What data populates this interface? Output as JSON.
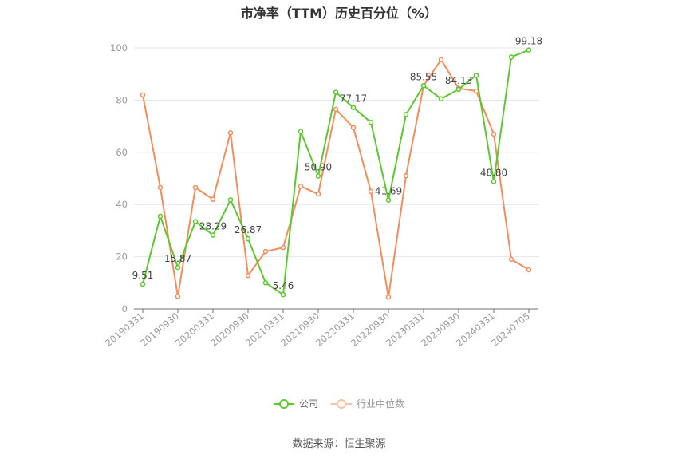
{
  "title": "市净率（TTM）历史百分位（%）",
  "source": "数据来源：恒生聚源",
  "legend": [
    {
      "label": "公司",
      "color": "#5cc72f"
    },
    {
      "label": "行业中位数",
      "color": "#f58c5b"
    }
  ],
  "chart_data": {
    "type": "line",
    "title": "市净率（TTM）历史百分位（%）",
    "xlabel": "",
    "ylabel": "",
    "ylim": [
      0,
      100
    ],
    "yticks": [
      0,
      20,
      40,
      60,
      80,
      100
    ],
    "grid": true,
    "legend_position": "bottom",
    "x": [
      "20190331",
      "20190630",
      "20190930",
      "20191231",
      "20200331",
      "20200630",
      "20200930",
      "20201231",
      "20210331",
      "20210630",
      "20210930",
      "20211231",
      "20220331",
      "20220630",
      "20220930",
      "20221231",
      "20230331",
      "20230630",
      "20230930",
      "20231231",
      "20240331",
      "20240630",
      "20240705"
    ],
    "xtick_labels": [
      "20190331",
      "20190930",
      "20200331",
      "20200930",
      "20210331",
      "20210930",
      "20220331",
      "20220930",
      "20230331",
      "20230930",
      "20240331",
      "20240705"
    ],
    "series": [
      {
        "name": "公司",
        "color": "#5cc72f",
        "values": [
          9.51,
          35.5,
          15.87,
          33.5,
          28.29,
          41.8,
          26.87,
          10.0,
          5.46,
          68.0,
          50.9,
          83.0,
          77.17,
          71.5,
          41.69,
          74.5,
          85.55,
          80.5,
          84.13,
          89.5,
          48.8,
          96.5,
          99.18
        ],
        "labeled_points": {
          "0": "9.51",
          "2": "15.87",
          "4": "28.29",
          "6": "26.87",
          "8": "5.46",
          "10": "50.90",
          "12": "77.17",
          "14": "41.69",
          "16": "85.55",
          "18": "84.13",
          "20": "48.80",
          "22": "99.18"
        }
      },
      {
        "name": "行业中位数",
        "color": "#f58c5b",
        "values": [
          82.0,
          46.5,
          4.8,
          46.5,
          42.0,
          67.5,
          12.8,
          22.0,
          23.5,
          47.0,
          44.0,
          76.5,
          69.5,
          45.0,
          4.5,
          51.0,
          85.5,
          95.5,
          84.5,
          83.5,
          67.0,
          19.0,
          15.0
        ]
      }
    ]
  }
}
